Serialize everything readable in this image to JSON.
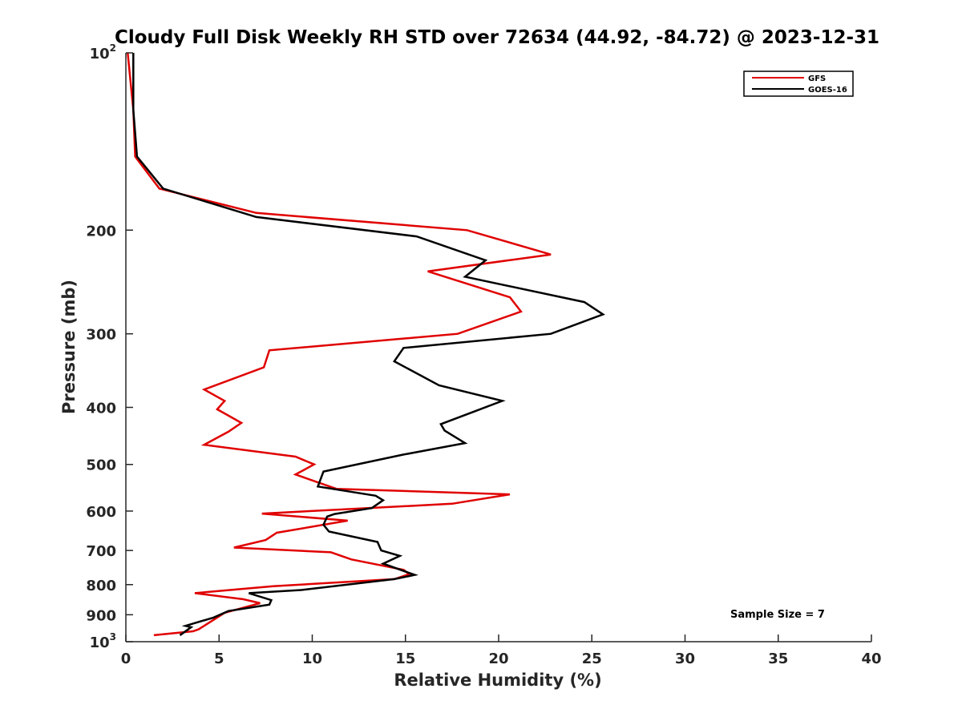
{
  "chart_data": {
    "type": "line",
    "title": "Cloudy Full Disk Weekly RH STD over 72634 (44.92, -84.72) @ 2023-12-31",
    "xlabel": "Relative Humidity (%)",
    "ylabel": "Pressure (mb)",
    "xlim": [
      0,
      40
    ],
    "ylim": [
      100,
      1000
    ],
    "y_scale": "log",
    "y_reversed": true,
    "x_ticks": [
      "0",
      "5",
      "10",
      "15",
      "20",
      "25",
      "30",
      "35",
      "40"
    ],
    "y_ticks": [
      {
        "value": 100,
        "base": "10",
        "exp": "2"
      },
      {
        "value": 200,
        "label": "200"
      },
      {
        "value": 300,
        "label": "300"
      },
      {
        "value": 400,
        "label": "400"
      },
      {
        "value": 500,
        "label": "500"
      },
      {
        "value": 600,
        "label": "600"
      },
      {
        "value": 700,
        "label": "700"
      },
      {
        "value": 800,
        "label": "800"
      },
      {
        "value": 900,
        "label": "900"
      },
      {
        "value": 1000,
        "base": "10",
        "exp": "3"
      }
    ],
    "grid": false,
    "legend_position": "top-right",
    "series": [
      {
        "name": "GFS",
        "color": "#e00000",
        "points": [
          [
            0.1,
            100
          ],
          [
            0.4,
            125
          ],
          [
            0.5,
            150
          ],
          [
            1.8,
            170
          ],
          [
            7.0,
            187
          ],
          [
            18.3,
            200
          ],
          [
            22.8,
            220
          ],
          [
            16.2,
            235
          ],
          [
            20.6,
            260
          ],
          [
            21.2,
            275
          ],
          [
            17.8,
            300
          ],
          [
            7.7,
            320
          ],
          [
            7.4,
            342
          ],
          [
            4.2,
            373
          ],
          [
            5.3,
            390
          ],
          [
            4.9,
            403
          ],
          [
            6.2,
            425
          ],
          [
            5.5,
            440
          ],
          [
            4.2,
            463
          ],
          [
            9.1,
            485
          ],
          [
            10.1,
            500
          ],
          [
            9.1,
            520
          ],
          [
            11.3,
            550
          ],
          [
            20.6,
            562
          ],
          [
            17.5,
            583
          ],
          [
            7.3,
            606
          ],
          [
            11.9,
            623
          ],
          [
            8.1,
            653
          ],
          [
            7.5,
            672
          ],
          [
            5.8,
            692
          ],
          [
            11.0,
            705
          ],
          [
            12.1,
            725
          ],
          [
            14.9,
            755
          ],
          [
            15.2,
            768
          ],
          [
            14.4,
            783
          ],
          [
            7.9,
            805
          ],
          [
            3.7,
            827
          ],
          [
            6.3,
            847
          ],
          [
            7.2,
            860
          ],
          [
            5.3,
            893
          ],
          [
            3.9,
            953
          ],
          [
            3.6,
            960
          ],
          [
            1.5,
            975
          ]
        ]
      },
      {
        "name": "GOES-16",
        "color": "#000000",
        "points": [
          [
            0.4,
            100
          ],
          [
            0.4,
            125
          ],
          [
            0.6,
            150
          ],
          [
            2.0,
            170
          ],
          [
            7.0,
            190
          ],
          [
            15.6,
            205
          ],
          [
            19.3,
            225
          ],
          [
            18.2,
            240
          ],
          [
            24.6,
            265
          ],
          [
            25.6,
            278
          ],
          [
            22.8,
            300
          ],
          [
            14.9,
            317
          ],
          [
            14.4,
            334
          ],
          [
            16.8,
            367
          ],
          [
            20.2,
            390
          ],
          [
            19.0,
            403
          ],
          [
            16.9,
            427
          ],
          [
            17.1,
            438
          ],
          [
            18.2,
            460
          ],
          [
            14.9,
            481
          ],
          [
            10.6,
            514
          ],
          [
            10.3,
            545
          ],
          [
            13.4,
            565
          ],
          [
            13.8,
            575
          ],
          [
            13.2,
            593
          ],
          [
            11.2,
            607
          ],
          [
            10.8,
            613
          ],
          [
            10.6,
            633
          ],
          [
            10.9,
            650
          ],
          [
            13.5,
            677
          ],
          [
            13.7,
            700
          ],
          [
            14.7,
            715
          ],
          [
            13.8,
            737
          ],
          [
            15.5,
            770
          ],
          [
            14.4,
            783
          ],
          [
            9.4,
            817
          ],
          [
            6.6,
            827
          ],
          [
            7.8,
            850
          ],
          [
            7.7,
            865
          ],
          [
            5.5,
            887
          ],
          [
            4.7,
            910
          ],
          [
            3.2,
            940
          ],
          [
            3.5,
            945
          ],
          [
            3.0,
            970
          ],
          [
            2.9,
            975
          ]
        ]
      }
    ],
    "annotation": "Sample Size = 7"
  }
}
